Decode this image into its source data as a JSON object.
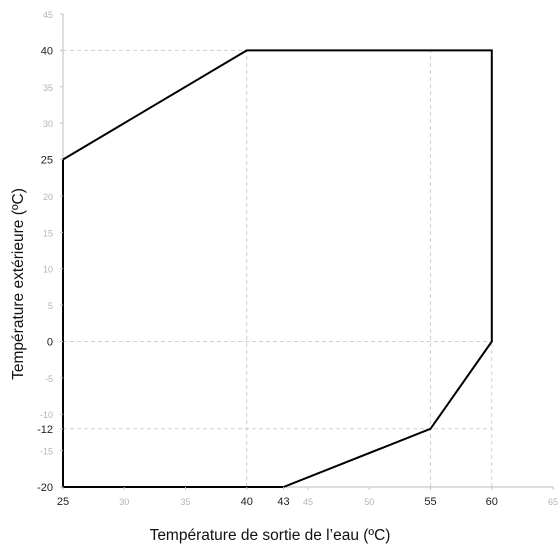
{
  "chart_data": {
    "type": "line",
    "title": "",
    "xlabel": "Température de sortie de l’eau (ºC)",
    "ylabel": "Température extérieure (ºC)",
    "xlim": [
      25,
      65
    ],
    "ylim": [
      -20,
      45
    ],
    "grid": false,
    "x_ticks_major": [
      {
        "value": 25,
        "label": "25"
      },
      {
        "value": 40,
        "label": "40"
      },
      {
        "value": 43,
        "label": "43"
      },
      {
        "value": 55,
        "label": "55"
      },
      {
        "value": 60,
        "label": "60"
      }
    ],
    "x_ticks_minor": [
      {
        "value": 30,
        "label": "30"
      },
      {
        "value": 35,
        "label": "35"
      },
      {
        "value": 45,
        "label": "45"
      },
      {
        "value": 50,
        "label": "50"
      },
      {
        "value": 65,
        "label": "65"
      }
    ],
    "y_ticks_major": [
      {
        "value": 40,
        "label": "40"
      },
      {
        "value": 25,
        "label": "25"
      },
      {
        "value": 0,
        "label": "0"
      },
      {
        "value": -12,
        "label": "-12"
      },
      {
        "value": -20,
        "label": "-20"
      }
    ],
    "y_ticks_minor": [
      {
        "value": 45,
        "label": "45"
      },
      {
        "value": 35,
        "label": "35"
      },
      {
        "value": 30,
        "label": "30"
      },
      {
        "value": 20,
        "label": "20"
      },
      {
        "value": 15,
        "label": "15"
      },
      {
        "value": 10,
        "label": "10"
      },
      {
        "value": 5,
        "label": "5"
      },
      {
        "value": -5,
        "label": "-5"
      },
      {
        "value": -10,
        "label": "-10"
      },
      {
        "value": -15,
        "label": "-15"
      }
    ],
    "reference_lines": [
      {
        "orientation": "vertical",
        "value": 40
      },
      {
        "orientation": "vertical",
        "value": 55
      },
      {
        "orientation": "vertical",
        "value": 60
      },
      {
        "orientation": "horizontal",
        "value": 40
      },
      {
        "orientation": "horizontal",
        "value": 0
      },
      {
        "orientation": "horizontal",
        "value": -12
      }
    ],
    "series": [
      {
        "closed": true,
        "color": "#000000",
        "points": [
          {
            "x": 25,
            "y": 25
          },
          {
            "x": 40,
            "y": 40
          },
          {
            "x": 60,
            "y": 40
          },
          {
            "x": 60,
            "y": 0
          },
          {
            "x": 55,
            "y": -12
          },
          {
            "x": 43,
            "y": -20
          },
          {
            "x": 25,
            "y": -20
          }
        ]
      }
    ]
  }
}
